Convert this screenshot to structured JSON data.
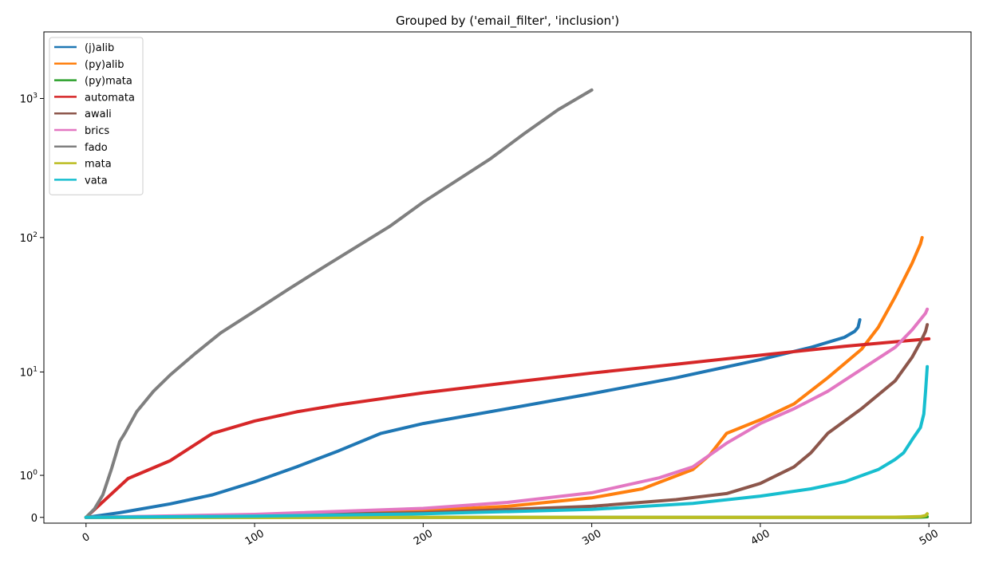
{
  "chart_data": {
    "type": "line",
    "title": "Grouped by ('email_filter', 'inclusion')",
    "xlabel": "",
    "ylabel": "",
    "xlim": [
      -25,
      525
    ],
    "yscale": "symlog",
    "ylim": [
      -0.1,
      3000
    ],
    "grid": false,
    "legend_position": "top-left",
    "x_ticks": [
      {
        "value": 0,
        "label": "0"
      },
      {
        "value": 100,
        "label": "100"
      },
      {
        "value": 200,
        "label": "200"
      },
      {
        "value": 300,
        "label": "300"
      },
      {
        "value": 400,
        "label": "400"
      },
      {
        "value": 500,
        "label": "500"
      }
    ],
    "y_ticks": [
      {
        "value": 0,
        "label": "0",
        "sup": ""
      },
      {
        "value": 1,
        "label": "10",
        "sup": "0"
      },
      {
        "value": 10,
        "label": "10",
        "sup": "1"
      },
      {
        "value": 100,
        "label": "10",
        "sup": "2"
      },
      {
        "value": 1000,
        "label": "10",
        "sup": "3"
      }
    ],
    "series": [
      {
        "name": "(j)alib",
        "color": "#1f77b4",
        "x": [
          0,
          20,
          50,
          75,
          100,
          125,
          150,
          175,
          200,
          250,
          300,
          350,
          400,
          430,
          450,
          456,
          458,
          459
        ],
        "y": [
          0,
          0.08,
          0.25,
          0.45,
          0.8,
          1.3,
          2.0,
          3.0,
          3.7,
          5.0,
          6.7,
          9.0,
          12.5,
          15.5,
          18.5,
          20.5,
          22.0,
          25.0
        ]
      },
      {
        "name": "(py)alib",
        "color": "#ff7f0e",
        "x": [
          0,
          100,
          200,
          250,
          300,
          330,
          360,
          370,
          380,
          400,
          420,
          440,
          460,
          470,
          480,
          490,
          495,
          496
        ],
        "y": [
          0,
          0.04,
          0.12,
          0.2,
          0.38,
          0.6,
          1.2,
          1.8,
          3.0,
          4.0,
          5.5,
          9.0,
          15.0,
          22.0,
          37.0,
          65.0,
          90.0,
          100.0
        ]
      },
      {
        "name": "(py)mata",
        "color": "#2ca02c",
        "x": [
          0,
          100,
          200,
          300,
          400,
          480,
          495,
          499
        ],
        "y": [
          0,
          0,
          0,
          0,
          0,
          0,
          0.003,
          0.01
        ]
      },
      {
        "name": "automata",
        "color": "#d62728",
        "x": [
          0,
          25,
          50,
          75,
          100,
          125,
          150,
          200,
          250,
          300,
          350,
          400,
          450,
          500
        ],
        "y": [
          0,
          0.9,
          1.55,
          3.0,
          3.9,
          4.7,
          5.4,
          6.8,
          8.2,
          9.8,
          11.5,
          13.5,
          15.8,
          18.0
        ]
      },
      {
        "name": "awali",
        "color": "#8c564b",
        "x": [
          0,
          100,
          200,
          300,
          350,
          380,
          400,
          420,
          430,
          440,
          460,
          480,
          490,
          495,
          498,
          499
        ],
        "y": [
          0,
          0.03,
          0.08,
          0.2,
          0.34,
          0.48,
          0.75,
          1.3,
          1.9,
          3.0,
          5.0,
          8.5,
          13.0,
          17.0,
          20.5,
          23.0
        ]
      },
      {
        "name": "brics",
        "color": "#e377c2",
        "x": [
          0,
          100,
          200,
          250,
          300,
          340,
          360,
          380,
          400,
          420,
          440,
          460,
          480,
          490,
          498,
          499
        ],
        "y": [
          0,
          0.05,
          0.16,
          0.28,
          0.5,
          0.92,
          1.3,
          2.4,
          3.7,
          5.0,
          7.0,
          10.5,
          15.5,
          21.0,
          28.0,
          30.0
        ]
      },
      {
        "name": "fado",
        "color": "#7f7f7f",
        "x": [
          0,
          5,
          10,
          15,
          20,
          23,
          30,
          40,
          50,
          65,
          80,
          100,
          120,
          140,
          160,
          180,
          200,
          240,
          260,
          280,
          300
        ],
        "y": [
          0,
          0.15,
          0.45,
          1.2,
          2.5,
          3.0,
          4.7,
          7.0,
          9.5,
          14.0,
          20.0,
          29.0,
          42.0,
          60.0,
          85.0,
          120.0,
          180.0,
          370.0,
          560.0,
          830.0,
          1150.0
        ]
      },
      {
        "name": "mata",
        "color": "#bcbd22",
        "x": [
          0,
          100,
          200,
          300,
          400,
          480,
          495,
          498,
          499
        ],
        "y": [
          0,
          0,
          0,
          0,
          0,
          0.003,
          0.012,
          0.03,
          0.06
        ]
      },
      {
        "name": "vata",
        "color": "#17becf",
        "x": [
          0,
          100,
          200,
          300,
          360,
          400,
          430,
          450,
          470,
          480,
          485,
          490,
          495,
          497,
          498,
          499
        ],
        "y": [
          0,
          0.02,
          0.06,
          0.14,
          0.26,
          0.42,
          0.6,
          0.8,
          1.2,
          1.6,
          1.9,
          2.6,
          3.4,
          4.5,
          7.0,
          11.0
        ]
      }
    ]
  }
}
